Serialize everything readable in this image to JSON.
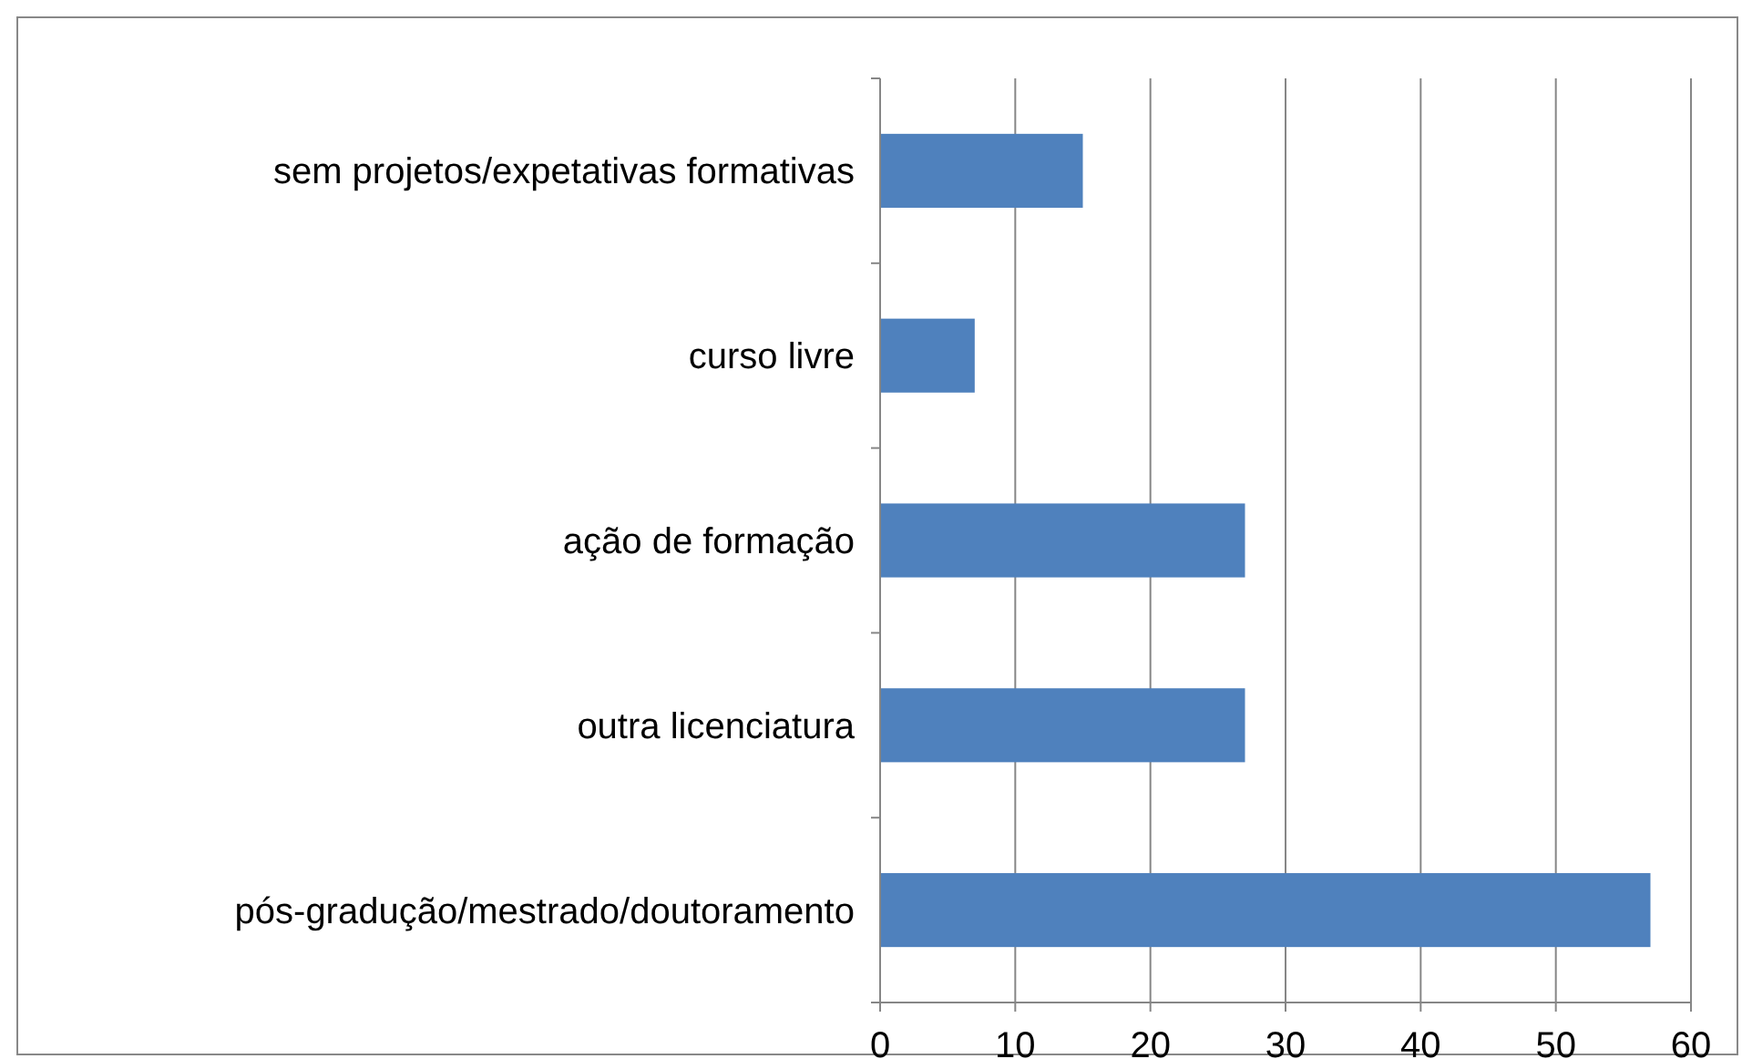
{
  "chart_data": {
    "type": "bar",
    "orientation": "horizontal",
    "categories": [
      "sem projetos/expetativas formativas",
      "curso livre",
      "ação de formação",
      "outra licenciatura",
      "pós-gradução/mestrado/doutoramento"
    ],
    "values": [
      15,
      7,
      27,
      27,
      57
    ],
    "color": "#4f81bd",
    "xlim": [
      0,
      60
    ],
    "xticks": [
      0,
      10,
      20,
      30,
      40,
      50,
      60
    ],
    "grid": "x"
  }
}
